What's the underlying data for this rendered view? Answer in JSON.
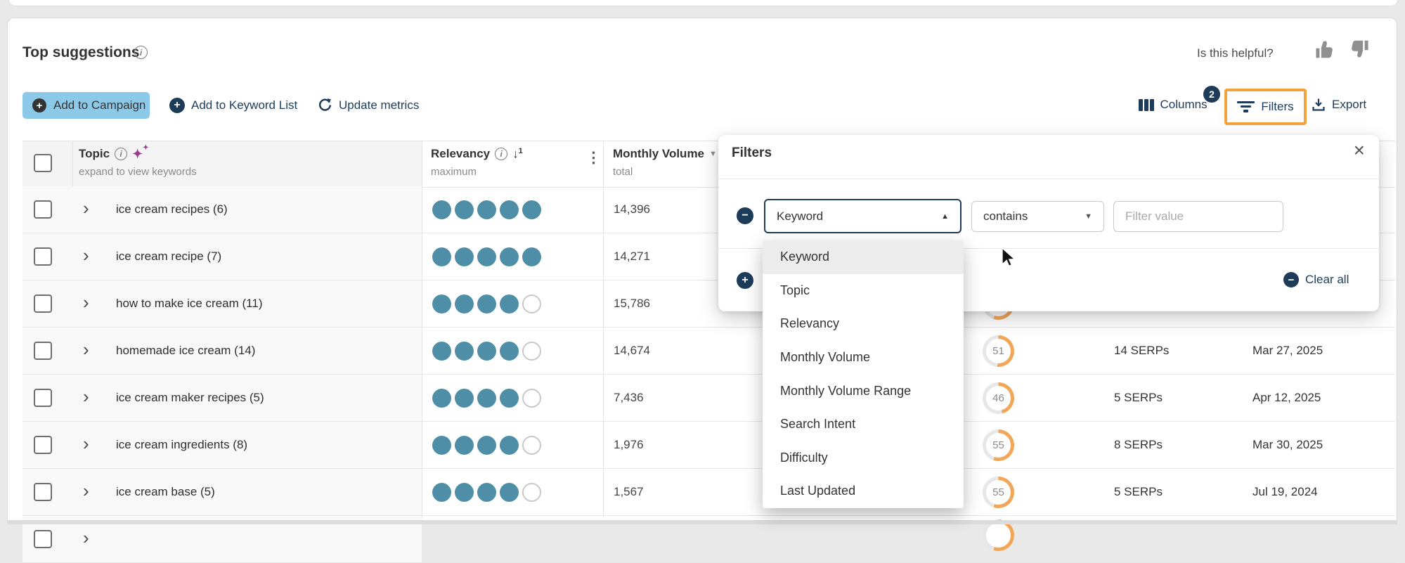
{
  "page": {
    "title": "Top suggestions",
    "helpful_label": "Is this helpful?"
  },
  "toolbar": {
    "add_to_campaign": "Add to Campaign",
    "add_to_keyword_list": "Add to Keyword List",
    "update_metrics": "Update metrics",
    "columns_label": "Columns",
    "filters_badge": "2",
    "filters_label": "Filters",
    "export_label": "Export"
  },
  "table": {
    "header": {
      "topic_label": "Topic",
      "topic_sub": "expand to view keywords",
      "relevancy_label": "Relevancy",
      "relevancy_sub": "maximum",
      "sort_rank": "1",
      "volume_label": "Monthly Volume",
      "volume_sub": "total"
    },
    "rows": [
      {
        "topic": "ice cream recipes (6)",
        "relevancy": 5,
        "volume": "14,396",
        "difficulty": null,
        "serps": null,
        "updated": null
      },
      {
        "topic": "ice cream recipe (7)",
        "relevancy": 5,
        "volume": "14,271",
        "difficulty": null,
        "serps": null,
        "updated": null
      },
      {
        "topic": "how to make ice cream (11)",
        "relevancy": 4,
        "volume": "15,786",
        "difficulty": {
          "value": "",
          "pct": 55
        },
        "serps": null,
        "updated": null
      },
      {
        "topic": "homemade ice cream (14)",
        "relevancy": 4,
        "volume": "14,674",
        "difficulty": {
          "value": "51",
          "pct": 51
        },
        "serps": "14 SERPs",
        "updated": "Mar 27, 2025"
      },
      {
        "topic": "ice cream maker recipes (5)",
        "relevancy": 4,
        "volume": "7,436",
        "difficulty": {
          "value": "46",
          "pct": 46
        },
        "serps": "5 SERPs",
        "updated": "Apr 12, 2025"
      },
      {
        "topic": "ice cream ingredients (8)",
        "relevancy": 4,
        "volume": "1,976",
        "difficulty": {
          "value": "55",
          "pct": 55
        },
        "serps": "8 SERPs",
        "updated": "Mar 30, 2025"
      },
      {
        "topic": "ice cream base (5)",
        "relevancy": 4,
        "volume": "1,567",
        "difficulty": {
          "value": "55",
          "pct": 55
        },
        "serps": "5 SERPs",
        "updated": "Jul 19, 2024"
      },
      {
        "topic": "",
        "relevancy": null,
        "volume": "",
        "difficulty": {
          "value": "",
          "pct": 55
        },
        "serps": null,
        "updated": null,
        "partial": true
      }
    ]
  },
  "filters_dialog": {
    "title": "Filters",
    "field_value": "Keyword",
    "operator_value": "contains",
    "value_placeholder": "Filter value",
    "clear_all_label": "Clear all",
    "selected_option": "Keyword",
    "dropdown_options": [
      "Keyword",
      "Topic",
      "Relevancy",
      "Monthly Volume",
      "Monthly Volume Range",
      "Search Intent",
      "Difficulty",
      "Last Updated"
    ]
  },
  "icons": {
    "close": "×",
    "chevron": "›",
    "kebab": "⋮",
    "caret_up": "▲",
    "caret_down": "▼",
    "plus": "+",
    "minus": "−",
    "sparkle": "✦",
    "info": "i",
    "sort_desc": "↓"
  },
  "colors": {
    "navy": "#1d3c5a",
    "button_blue": "#8cc9e9",
    "relevancy_teal": "#4e8fa7",
    "highlight_orange": "#f2a43b",
    "difficulty_orange": "#f2a65a",
    "ring_gray": "#e7e7e7",
    "page_bg": "#e9e9e9"
  }
}
